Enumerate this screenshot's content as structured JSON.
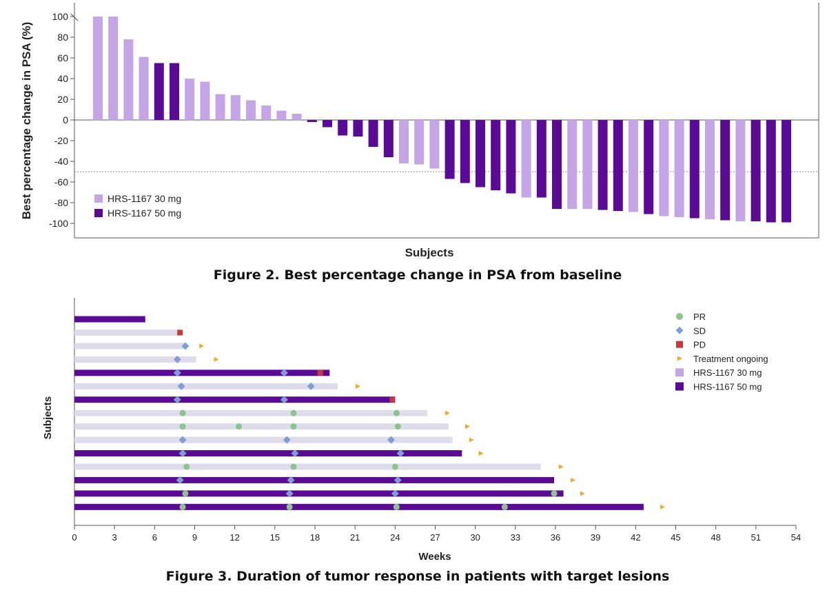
{
  "colors": {
    "dose30": "#c4a5e6",
    "dose50": "#5b0a96",
    "dose30_light": "#dedbeb",
    "pr": "#8cc58c",
    "sd": "#7f9fd2",
    "pd": "#c83a3a",
    "ongoing": "#f0a830",
    "axis": "#555555",
    "threshold": "#888888"
  },
  "chart_data": [
    {
      "type": "bar",
      "title": "",
      "caption": "Figure 2. Best percentage change in PSA from baseline",
      "xlabel": "Subjects",
      "ylabel": "Best percentage change in PSA (%)",
      "ylim": [
        -110,
        100
      ],
      "yticks": [
        "100",
        "80",
        "60",
        "40",
        "20",
        "0",
        "-20",
        "-40",
        "-60",
        "-80",
        "-100"
      ],
      "threshold": -50,
      "legend": {
        "placement": "bottom-left",
        "entries": [
          {
            "name": "HRS-1167 30 mg",
            "group": "30"
          },
          {
            "name": "HRS-1167 50 mg",
            "group": "50"
          }
        ]
      },
      "bars": [
        {
          "value": 100,
          "group": "30"
        },
        {
          "value": 100,
          "group": "30"
        },
        {
          "value": 78,
          "group": "30"
        },
        {
          "value": 61,
          "group": "30"
        },
        {
          "value": 55,
          "group": "50"
        },
        {
          "value": 55,
          "group": "50"
        },
        {
          "value": 40,
          "group": "30"
        },
        {
          "value": 37,
          "group": "30"
        },
        {
          "value": 25,
          "group": "30"
        },
        {
          "value": 24,
          "group": "30"
        },
        {
          "value": 19,
          "group": "30"
        },
        {
          "value": 14,
          "group": "30"
        },
        {
          "value": 9,
          "group": "30"
        },
        {
          "value": 6,
          "group": "30"
        },
        {
          "value": -2,
          "group": "50"
        },
        {
          "value": -7,
          "group": "50"
        },
        {
          "value": -15,
          "group": "50"
        },
        {
          "value": -16,
          "group": "50"
        },
        {
          "value": -26,
          "group": "50"
        },
        {
          "value": -36,
          "group": "50"
        },
        {
          "value": -42,
          "group": "30"
        },
        {
          "value": -43,
          "group": "30"
        },
        {
          "value": -47,
          "group": "30"
        },
        {
          "value": -57,
          "group": "50"
        },
        {
          "value": -61,
          "group": "50"
        },
        {
          "value": -65,
          "group": "50"
        },
        {
          "value": -68,
          "group": "50"
        },
        {
          "value": -71,
          "group": "50"
        },
        {
          "value": -75,
          "group": "30"
        },
        {
          "value": -75,
          "group": "50"
        },
        {
          "value": -86,
          "group": "50"
        },
        {
          "value": -86,
          "group": "30"
        },
        {
          "value": -86,
          "group": "30"
        },
        {
          "value": -87,
          "group": "50"
        },
        {
          "value": -88,
          "group": "50"
        },
        {
          "value": -89,
          "group": "30"
        },
        {
          "value": -91,
          "group": "50"
        },
        {
          "value": -93,
          "group": "30"
        },
        {
          "value": -94,
          "group": "30"
        },
        {
          "value": -95,
          "group": "50"
        },
        {
          "value": -96,
          "group": "30"
        },
        {
          "value": -97,
          "group": "50"
        },
        {
          "value": -98,
          "group": "30"
        },
        {
          "value": -98,
          "group": "50"
        },
        {
          "value": -99,
          "group": "50"
        },
        {
          "value": -99,
          "group": "50"
        }
      ]
    },
    {
      "type": "swimmer",
      "title": "",
      "caption": "Figure 3. Duration of tumor response in patients with target lesions",
      "xlabel": "Weeks",
      "ylabel": "Subjects",
      "xlim": [
        0,
        54
      ],
      "xticks": [
        "0",
        "3",
        "6",
        "9",
        "12",
        "15",
        "18",
        "21",
        "24",
        "27",
        "30",
        "33",
        "36",
        "39",
        "42",
        "45",
        "48",
        "51",
        "54"
      ],
      "legend": {
        "placement": "top-right",
        "entries": [
          {
            "name": "PR",
            "kind": "pr"
          },
          {
            "name": "SD",
            "kind": "sd"
          },
          {
            "name": "PD",
            "kind": "pd"
          },
          {
            "name": "Treatment ongoing",
            "kind": "ongoing"
          },
          {
            "name": "HRS-1167 30 mg",
            "kind": "dose30"
          },
          {
            "name": "HRS-1167 50 mg",
            "kind": "dose50"
          }
        ]
      },
      "subjects": [
        {
          "group": "50",
          "duration": 5.3,
          "events": [],
          "ongoing": null
        },
        {
          "group": "30",
          "duration": 7.9,
          "events": [
            {
              "week": 7.9,
              "type": "pd"
            }
          ],
          "ongoing": null
        },
        {
          "group": "30",
          "duration": 8.3,
          "events": [
            {
              "week": 8.3,
              "type": "sd"
            }
          ],
          "ongoing": 9.5
        },
        {
          "group": "30",
          "duration": 9.1,
          "events": [
            {
              "week": 7.7,
              "type": "sd"
            }
          ],
          "ongoing": 10.6
        },
        {
          "group": "50",
          "duration": 19.1,
          "events": [
            {
              "week": 7.7,
              "type": "sd"
            },
            {
              "week": 15.7,
              "type": "sd"
            },
            {
              "week": 18.4,
              "type": "pd"
            }
          ],
          "ongoing": null
        },
        {
          "group": "30",
          "duration": 19.7,
          "events": [
            {
              "week": 8.0,
              "type": "sd"
            },
            {
              "week": 17.7,
              "type": "sd"
            }
          ],
          "ongoing": 21.2
        },
        {
          "group": "50",
          "duration": 24.0,
          "events": [
            {
              "week": 7.7,
              "type": "sd"
            },
            {
              "week": 15.7,
              "type": "sd"
            },
            {
              "week": 23.8,
              "type": "pd"
            }
          ],
          "ongoing": null
        },
        {
          "group": "30",
          "duration": 26.4,
          "events": [
            {
              "week": 8.1,
              "type": "pr"
            },
            {
              "week": 16.4,
              "type": "pr"
            },
            {
              "week": 24.1,
              "type": "pr"
            }
          ],
          "ongoing": 27.9
        },
        {
          "group": "30",
          "duration": 28.0,
          "events": [
            {
              "week": 8.1,
              "type": "pr"
            },
            {
              "week": 12.3,
              "type": "pr"
            },
            {
              "week": 16.4,
              "type": "pr"
            },
            {
              "week": 24.2,
              "type": "pr"
            }
          ],
          "ongoing": 29.4
        },
        {
          "group": "30",
          "duration": 28.3,
          "events": [
            {
              "week": 8.1,
              "type": "sd"
            },
            {
              "week": 15.9,
              "type": "sd"
            },
            {
              "week": 23.7,
              "type": "sd"
            }
          ],
          "ongoing": 29.7
        },
        {
          "group": "50",
          "duration": 29.0,
          "events": [
            {
              "week": 8.1,
              "type": "sd"
            },
            {
              "week": 16.5,
              "type": "sd"
            },
            {
              "week": 24.4,
              "type": "sd"
            }
          ],
          "ongoing": 30.4
        },
        {
          "group": "30",
          "duration": 34.9,
          "events": [
            {
              "week": 8.4,
              "type": "pr"
            },
            {
              "week": 16.4,
              "type": "pr"
            },
            {
              "week": 24.0,
              "type": "pr"
            }
          ],
          "ongoing": 36.4
        },
        {
          "group": "50",
          "duration": 35.9,
          "events": [
            {
              "week": 7.9,
              "type": "sd"
            },
            {
              "week": 16.2,
              "type": "sd"
            },
            {
              "week": 24.2,
              "type": "sd"
            }
          ],
          "ongoing": 37.3
        },
        {
          "group": "50",
          "duration": 36.6,
          "events": [
            {
              "week": 8.3,
              "type": "pr"
            },
            {
              "week": 16.1,
              "type": "sd"
            },
            {
              "week": 24.0,
              "type": "sd"
            },
            {
              "week": 35.9,
              "type": "pr"
            }
          ],
          "ongoing": 38.0
        },
        {
          "group": "50",
          "duration": 42.6,
          "events": [
            {
              "week": 8.1,
              "type": "pr"
            },
            {
              "week": 16.1,
              "type": "pr"
            },
            {
              "week": 24.1,
              "type": "pr"
            },
            {
              "week": 32.2,
              "type": "pr"
            }
          ],
          "ongoing": 44.0
        }
      ]
    }
  ]
}
